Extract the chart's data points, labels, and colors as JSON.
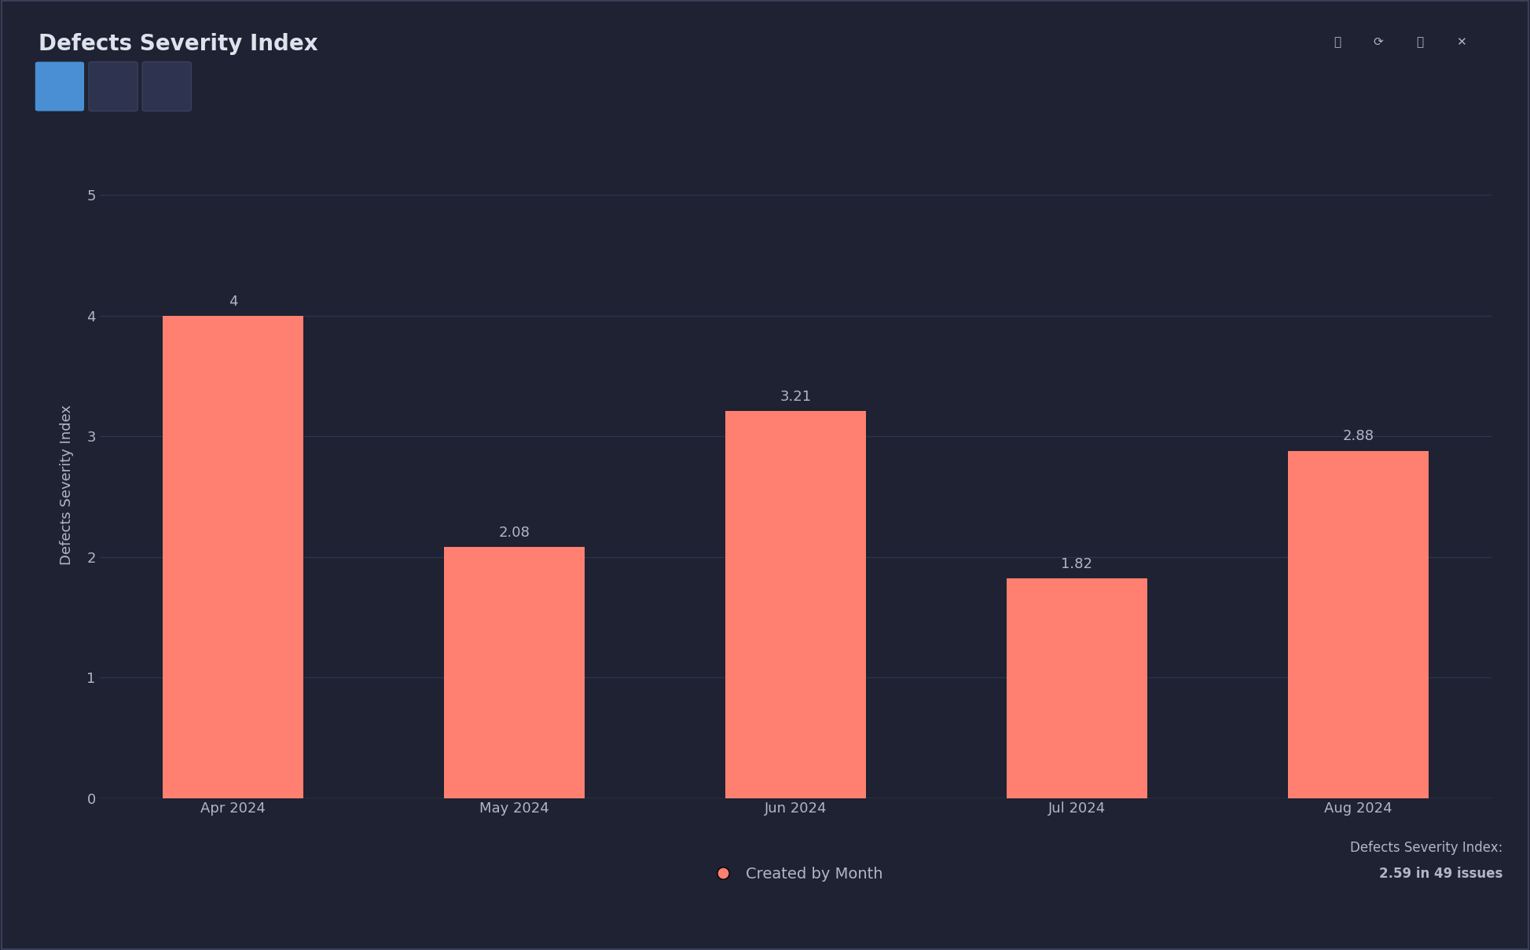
{
  "title": "Defects Severity Index",
  "categories": [
    "Apr 2024",
    "May 2024",
    "Jun 2024",
    "Jul 2024",
    "Aug 2024"
  ],
  "values": [
    4.0,
    2.08,
    3.21,
    1.82,
    2.88
  ],
  "bar_color": "#FF8070",
  "background_color": "#1e2232",
  "plot_bg_color": "#1e2232",
  "text_color": "#b0b8c8",
  "title_color": "#dde3ed",
  "grid_color": "#2e3450",
  "ylabel": "Defects Severity Index",
  "ylim": [
    0,
    5.2
  ],
  "yticks": [
    0,
    1,
    2,
    3,
    4,
    5
  ],
  "legend_label": "Created by Month",
  "legend_marker_color": "#FF8070",
  "footer_line1": "Defects Severity Index:",
  "footer_line2": "2.59 in 49 issues",
  "title_fontsize": 20,
  "axis_label_fontsize": 13,
  "tick_fontsize": 13,
  "bar_label_fontsize": 13,
  "legend_fontsize": 14,
  "footer_fontsize": 12,
  "toolbar_btn_blue": "#4a8fd4",
  "toolbar_btn_gray": "#2e3450",
  "border_color": "#3a3f58"
}
